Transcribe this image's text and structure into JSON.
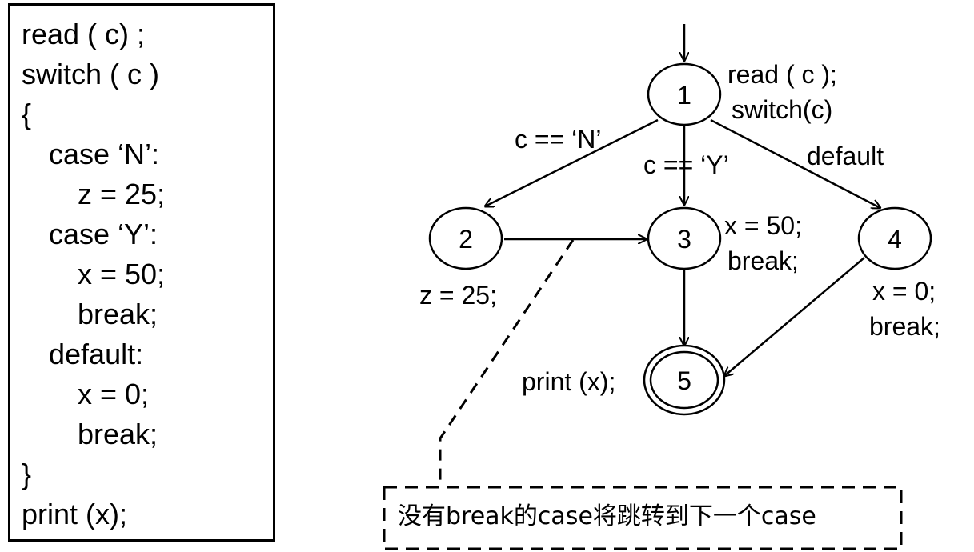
{
  "code": {
    "lines": [
      "read ( c) ;",
      "switch ( c )",
      "{",
      "case ‘N’:",
      "z = 25;",
      "case ‘Y’:",
      "x = 50;",
      "break;",
      "default:",
      "x = 0;",
      "break;",
      "}",
      "print (x);"
    ]
  },
  "graph": {
    "nodes": [
      {
        "id": "1",
        "label": "1"
      },
      {
        "id": "2",
        "label": "2"
      },
      {
        "id": "3",
        "label": "3"
      },
      {
        "id": "4",
        "label": "4"
      },
      {
        "id": "5",
        "label": "5"
      }
    ],
    "node_labels": {
      "n1_line1": "read ( c );",
      "n1_line2": "switch(c)",
      "n2": "z = 25;",
      "n3_line1": "x = 50;",
      "n3_line2": "break;",
      "n4_line1": "x = 0;",
      "n4_line2": "break;",
      "n5": "print (x);"
    },
    "edge_labels": {
      "e12": "c == ‘N’",
      "e13": "c == ‘Y’",
      "e14": "default"
    }
  },
  "annotation": {
    "text": "没有break的case将跳转到下一个case"
  }
}
